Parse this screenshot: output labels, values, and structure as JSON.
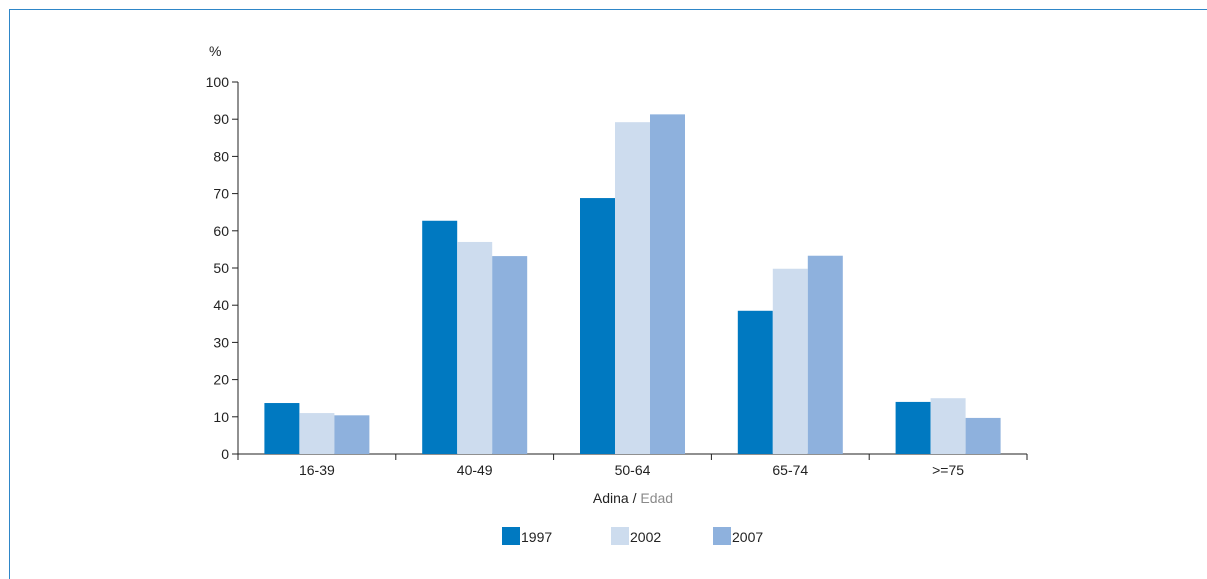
{
  "chart_data": {
    "type": "bar",
    "ylabel": "%",
    "xlabel": {
      "main": "Adina",
      "separator": " / ",
      "secondary": "Edad"
    },
    "categories": [
      "16-39",
      "40-49",
      "50-64",
      "65-74",
      ">=75"
    ],
    "series": [
      {
        "name": "1997",
        "color": "#0079c1",
        "values": [
          13.7,
          62.7,
          68.8,
          38.5,
          14.0
        ]
      },
      {
        "name": "2002",
        "color": "#cddcee",
        "values": [
          11.0,
          57.0,
          89.2,
          49.8,
          15.0
        ]
      },
      {
        "name": "2007",
        "color": "#8eb1dd",
        "values": [
          10.4,
          53.2,
          91.3,
          53.3,
          9.7
        ]
      }
    ],
    "ylim": [
      0,
      100
    ],
    "yticks": [
      0,
      10,
      20,
      30,
      40,
      50,
      60,
      70,
      80,
      90,
      100
    ],
    "grid": false,
    "legend_position": "bottom-center"
  }
}
